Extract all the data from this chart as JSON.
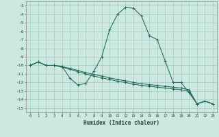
{
  "xlabel": "Humidex (Indice chaleur)",
  "background_color": "#cce8e0",
  "grid_color": "#99ccbb",
  "line_color": "#1a6a5a",
  "xlim": [
    -0.5,
    23.5
  ],
  "ylim": [
    -15.5,
    -2.5
  ],
  "xticks": [
    0,
    1,
    2,
    3,
    4,
    5,
    6,
    7,
    8,
    9,
    10,
    11,
    12,
    13,
    14,
    15,
    16,
    17,
    18,
    19,
    20,
    21,
    22,
    23
  ],
  "yticks": [
    -3,
    -4,
    -5,
    -6,
    -7,
    -8,
    -9,
    -10,
    -11,
    -12,
    -13,
    -14,
    -15
  ],
  "series1_x": [
    0,
    1,
    2,
    3,
    4,
    5,
    6,
    7,
    8,
    9,
    10,
    11,
    12,
    13,
    14,
    15,
    16,
    17,
    18,
    19,
    20,
    21,
    22,
    23
  ],
  "series1_y": [
    -10.0,
    -9.6,
    -10.0,
    -10.0,
    -10.1,
    -11.5,
    -12.3,
    -12.1,
    -10.7,
    -9.0,
    -5.8,
    -4.0,
    -3.2,
    -3.3,
    -4.2,
    -6.5,
    -7.0,
    -9.5,
    -12.0,
    -12.0,
    -13.2,
    -14.5,
    -14.2,
    -14.5
  ],
  "series2_x": [
    0,
    1,
    2,
    3,
    4,
    5,
    6,
    7,
    8,
    9,
    10,
    11,
    12,
    13,
    14,
    15,
    16,
    17,
    18,
    19,
    20,
    21,
    22,
    23
  ],
  "series2_y": [
    -10.0,
    -9.6,
    -10.0,
    -10.0,
    -10.2,
    -10.45,
    -10.75,
    -11.0,
    -11.25,
    -11.45,
    -11.65,
    -11.85,
    -12.0,
    -12.2,
    -12.35,
    -12.45,
    -12.55,
    -12.65,
    -12.75,
    -12.85,
    -13.05,
    -14.5,
    -14.2,
    -14.5
  ],
  "series3_x": [
    0,
    1,
    2,
    3,
    4,
    5,
    6,
    7,
    8,
    9,
    10,
    11,
    12,
    13,
    14,
    15,
    16,
    17,
    18,
    19,
    20,
    21,
    22,
    23
  ],
  "series3_y": [
    -10.0,
    -9.6,
    -10.0,
    -10.0,
    -10.15,
    -10.35,
    -10.6,
    -10.85,
    -11.05,
    -11.25,
    -11.45,
    -11.65,
    -11.8,
    -12.0,
    -12.15,
    -12.25,
    -12.35,
    -12.45,
    -12.55,
    -12.65,
    -12.85,
    -14.5,
    -14.2,
    -14.5
  ]
}
